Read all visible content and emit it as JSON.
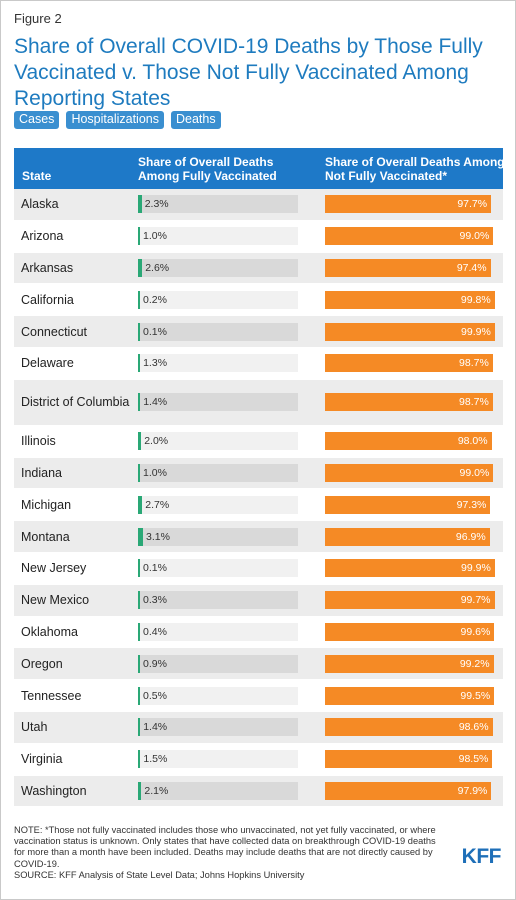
{
  "figure_label": "Figure 2",
  "tabs": [
    "Cases",
    "Hospitalizations",
    "Deaths"
  ],
  "note": "NOTE: *Those not fully vaccinated includes those who unvaccinated, not yet fully vaccinated, or where vaccination status is unknown. Only states that have collected data on breakthrough COVID-19 deaths for more than a month have been included. Deaths may include deaths that are not directly caused by COVID-19.",
  "source": "SOURCE: KFF Analysis of State Level Data; Johns Hopkins University",
  "logo": "KFF",
  "colors": {
    "header": "#1e79c8",
    "vaccinated": "#2aa876",
    "not_vaccinated": "#f58a25",
    "title": "#1e7bbf"
  },
  "chart_data": {
    "type": "table",
    "title": "Share of Overall COVID-19 Deaths by Those Fully Vaccinated v. Those Not Fully Vaccinated Among Reporting States",
    "columns": [
      "State",
      "Share of Overall Deaths Among Fully Vaccinated",
      "Share of Overall Deaths Among Not Fully Vaccinated*"
    ],
    "value_max": 100,
    "rows": [
      {
        "state": "Alaska",
        "vaccinated": 2.3,
        "vaccinated_label": "2.3%",
        "not_vaccinated": 97.7,
        "not_vaccinated_label": "97.7%"
      },
      {
        "state": "Arizona",
        "vaccinated": 1.0,
        "vaccinated_label": "1.0%",
        "not_vaccinated": 99.0,
        "not_vaccinated_label": "99.0%"
      },
      {
        "state": "Arkansas",
        "vaccinated": 2.6,
        "vaccinated_label": "2.6%",
        "not_vaccinated": 97.4,
        "not_vaccinated_label": "97.4%"
      },
      {
        "state": "California",
        "vaccinated": 0.2,
        "vaccinated_label": "0.2%",
        "not_vaccinated": 99.8,
        "not_vaccinated_label": "99.8%"
      },
      {
        "state": "Connecticut",
        "vaccinated": 0.1,
        "vaccinated_label": "0.1%",
        "not_vaccinated": 99.9,
        "not_vaccinated_label": "99.9%"
      },
      {
        "state": "Delaware",
        "vaccinated": 1.3,
        "vaccinated_label": "1.3%",
        "not_vaccinated": 98.7,
        "not_vaccinated_label": "98.7%"
      },
      {
        "state": "District of Columbia",
        "vaccinated": 1.4,
        "vaccinated_label": "1.4%",
        "not_vaccinated": 98.7,
        "not_vaccinated_label": "98.7%"
      },
      {
        "state": "Illinois",
        "vaccinated": 2.0,
        "vaccinated_label": "2.0%",
        "not_vaccinated": 98.0,
        "not_vaccinated_label": "98.0%"
      },
      {
        "state": "Indiana",
        "vaccinated": 1.0,
        "vaccinated_label": "1.0%",
        "not_vaccinated": 99.0,
        "not_vaccinated_label": "99.0%"
      },
      {
        "state": "Michigan",
        "vaccinated": 2.7,
        "vaccinated_label": "2.7%",
        "not_vaccinated": 97.3,
        "not_vaccinated_label": "97.3%"
      },
      {
        "state": "Montana",
        "vaccinated": 3.1,
        "vaccinated_label": "3.1%",
        "not_vaccinated": 96.9,
        "not_vaccinated_label": "96.9%"
      },
      {
        "state": "New Jersey",
        "vaccinated": 0.1,
        "vaccinated_label": "0.1%",
        "not_vaccinated": 99.9,
        "not_vaccinated_label": "99.9%"
      },
      {
        "state": "New Mexico",
        "vaccinated": 0.3,
        "vaccinated_label": "0.3%",
        "not_vaccinated": 99.7,
        "not_vaccinated_label": "99.7%"
      },
      {
        "state": "Oklahoma",
        "vaccinated": 0.4,
        "vaccinated_label": "0.4%",
        "not_vaccinated": 99.6,
        "not_vaccinated_label": "99.6%"
      },
      {
        "state": "Oregon",
        "vaccinated": 0.9,
        "vaccinated_label": "0.9%",
        "not_vaccinated": 99.2,
        "not_vaccinated_label": "99.2%"
      },
      {
        "state": "Tennessee",
        "vaccinated": 0.5,
        "vaccinated_label": "0.5%",
        "not_vaccinated": 99.5,
        "not_vaccinated_label": "99.5%"
      },
      {
        "state": "Utah",
        "vaccinated": 1.4,
        "vaccinated_label": "1.4%",
        "not_vaccinated": 98.6,
        "not_vaccinated_label": "98.6%"
      },
      {
        "state": "Virginia",
        "vaccinated": 1.5,
        "vaccinated_label": "1.5%",
        "not_vaccinated": 98.5,
        "not_vaccinated_label": "98.5%"
      },
      {
        "state": "Washington",
        "vaccinated": 2.1,
        "vaccinated_label": "2.1%",
        "not_vaccinated": 97.9,
        "not_vaccinated_label": "97.9%"
      }
    ]
  }
}
